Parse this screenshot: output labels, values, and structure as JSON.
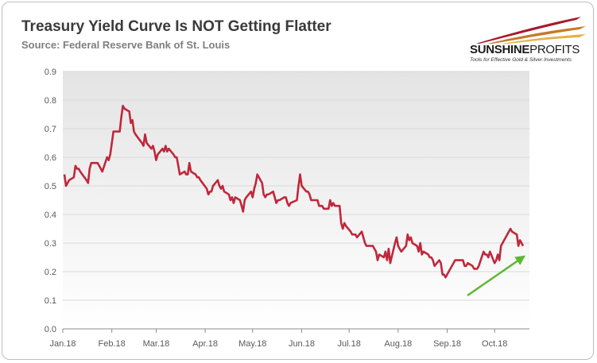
{
  "header": {
    "title": "Treasury Yield Curve Is NOT Getting Flatter",
    "subtitle": "Source: Federal Reserve Bank of St. Louis"
  },
  "logo": {
    "name_bold": "SUNSHINE",
    "name_light": "PROFITS",
    "tagline": "Tools for Effective Gold & Silver Investments",
    "colors": [
      "#a8192e",
      "#c47a2b",
      "#e2b24a"
    ]
  },
  "colors": {
    "line": "#c0273a",
    "arrow": "#5db833",
    "grid": "#d9d9d9",
    "plot_gradient_top": "#e4e4e4",
    "plot_gradient_bottom": "#ffffff"
  },
  "chart_data": {
    "type": "line",
    "title": "Treasury Yield Curve Is NOT Getting Flatter",
    "subtitle": "Source: Federal Reserve Bank of St. Louis",
    "xlabel": "",
    "ylabel": "",
    "ylim": [
      0,
      0.9
    ],
    "yticks": [
      0.0,
      0.1,
      0.2,
      0.3,
      0.4,
      0.5,
      0.6,
      0.7,
      0.8,
      0.9
    ],
    "ytick_labels": [
      "0.0",
      "0.1",
      "0.2",
      "0.3",
      "0.4",
      "0.5",
      "0.6",
      "0.7",
      "0.8",
      "0.9"
    ],
    "xlim": [
      "2018-01-01",
      "2018-10-23"
    ],
    "xticks": [
      "2018-01-01",
      "2018-02-01",
      "2018-03-01",
      "2018-04-01",
      "2018-05-01",
      "2018-06-01",
      "2018-07-01",
      "2018-08-01",
      "2018-09-01",
      "2018-10-01"
    ],
    "xtick_labels": [
      "Jan.18",
      "Feb.18",
      "Mar.18",
      "Apr.18",
      "May.18",
      "Jun.18",
      "Jul.18",
      "Aug.18",
      "Sep.18",
      "Oct.18"
    ],
    "grid": true,
    "legend": "none",
    "series": [
      {
        "x": [
          "2018-01-02",
          "2018-01-03",
          "2018-01-04",
          "2018-01-05",
          "2018-01-08",
          "2018-01-09",
          "2018-01-10",
          "2018-01-11",
          "2018-01-12",
          "2018-01-16",
          "2018-01-17",
          "2018-01-18",
          "2018-01-19",
          "2018-01-22",
          "2018-01-23",
          "2018-01-24",
          "2018-01-25",
          "2018-01-26",
          "2018-01-29",
          "2018-01-30",
          "2018-01-31",
          "2018-02-01",
          "2018-02-02",
          "2018-02-05",
          "2018-02-06",
          "2018-02-07",
          "2018-02-08",
          "2018-02-09",
          "2018-02-12",
          "2018-02-13",
          "2018-02-14",
          "2018-02-15",
          "2018-02-16",
          "2018-02-20",
          "2018-02-21",
          "2018-02-22",
          "2018-02-23",
          "2018-02-26",
          "2018-02-27",
          "2018-02-28",
          "2018-03-01",
          "2018-03-02",
          "2018-03-05",
          "2018-03-06",
          "2018-03-07",
          "2018-03-08",
          "2018-03-09",
          "2018-03-12",
          "2018-03-13",
          "2018-03-14",
          "2018-03-15",
          "2018-03-16",
          "2018-03-19",
          "2018-03-20",
          "2018-03-21",
          "2018-03-22",
          "2018-03-23",
          "2018-03-26",
          "2018-03-27",
          "2018-03-28",
          "2018-03-29",
          "2018-04-02",
          "2018-04-03",
          "2018-04-04",
          "2018-04-05",
          "2018-04-06",
          "2018-04-09",
          "2018-04-10",
          "2018-04-11",
          "2018-04-12",
          "2018-04-13",
          "2018-04-16",
          "2018-04-17",
          "2018-04-18",
          "2018-04-19",
          "2018-04-20",
          "2018-04-23",
          "2018-04-24",
          "2018-04-25",
          "2018-04-26",
          "2018-04-27",
          "2018-04-30",
          "2018-05-01",
          "2018-05-02",
          "2018-05-03",
          "2018-05-04",
          "2018-05-07",
          "2018-05-08",
          "2018-05-09",
          "2018-05-10",
          "2018-05-11",
          "2018-05-14",
          "2018-05-15",
          "2018-05-16",
          "2018-05-17",
          "2018-05-18",
          "2018-05-21",
          "2018-05-22",
          "2018-05-23",
          "2018-05-24",
          "2018-05-25",
          "2018-05-29",
          "2018-05-30",
          "2018-05-31",
          "2018-06-01",
          "2018-06-04",
          "2018-06-05",
          "2018-06-06",
          "2018-06-07",
          "2018-06-08",
          "2018-06-11",
          "2018-06-12",
          "2018-06-13",
          "2018-06-14",
          "2018-06-15",
          "2018-06-18",
          "2018-06-19",
          "2018-06-20",
          "2018-06-21",
          "2018-06-22",
          "2018-06-25",
          "2018-06-26",
          "2018-06-27",
          "2018-06-28",
          "2018-06-29",
          "2018-07-02",
          "2018-07-03",
          "2018-07-05",
          "2018-07-06",
          "2018-07-09",
          "2018-07-10",
          "2018-07-11",
          "2018-07-12",
          "2018-07-13",
          "2018-07-16",
          "2018-07-17",
          "2018-07-18",
          "2018-07-19",
          "2018-07-20",
          "2018-07-23",
          "2018-07-24",
          "2018-07-25",
          "2018-07-26",
          "2018-07-27",
          "2018-07-30",
          "2018-07-31",
          "2018-08-01",
          "2018-08-02",
          "2018-08-03",
          "2018-08-06",
          "2018-08-07",
          "2018-08-08",
          "2018-08-09",
          "2018-08-10",
          "2018-08-13",
          "2018-08-14",
          "2018-08-15",
          "2018-08-16",
          "2018-08-17",
          "2018-08-20",
          "2018-08-21",
          "2018-08-22",
          "2018-08-23",
          "2018-08-24",
          "2018-08-27",
          "2018-08-28",
          "2018-08-29",
          "2018-08-30",
          "2018-08-31",
          "2018-09-04",
          "2018-09-05",
          "2018-09-06",
          "2018-09-07",
          "2018-09-10",
          "2018-09-11",
          "2018-09-12",
          "2018-09-13",
          "2018-09-14",
          "2018-09-17",
          "2018-09-18",
          "2018-09-19",
          "2018-09-20",
          "2018-09-21",
          "2018-09-24",
          "2018-09-25",
          "2018-09-26",
          "2018-09-27",
          "2018-09-28",
          "2018-10-01",
          "2018-10-02",
          "2018-10-03",
          "2018-10-04",
          "2018-10-05",
          "2018-10-09",
          "2018-10-10",
          "2018-10-11",
          "2018-10-12",
          "2018-10-15",
          "2018-10-16",
          "2018-10-17",
          "2018-10-18",
          "2018-10-19"
        ],
        "y": [
          0.54,
          0.5,
          0.51,
          0.52,
          0.53,
          0.57,
          0.56,
          0.56,
          0.55,
          0.52,
          0.51,
          0.56,
          0.58,
          0.58,
          0.58,
          0.57,
          0.56,
          0.55,
          0.6,
          0.59,
          0.61,
          0.65,
          0.69,
          0.69,
          0.69,
          0.74,
          0.78,
          0.77,
          0.76,
          0.72,
          0.73,
          0.69,
          0.68,
          0.65,
          0.64,
          0.68,
          0.65,
          0.63,
          0.64,
          0.62,
          0.59,
          0.61,
          0.63,
          0.62,
          0.64,
          0.62,
          0.63,
          0.61,
          0.6,
          0.6,
          0.57,
          0.54,
          0.55,
          0.54,
          0.54,
          0.58,
          0.55,
          0.54,
          0.53,
          0.53,
          0.52,
          0.49,
          0.47,
          0.48,
          0.48,
          0.5,
          0.52,
          0.5,
          0.49,
          0.5,
          0.48,
          0.47,
          0.45,
          0.46,
          0.44,
          0.46,
          0.45,
          0.43,
          0.41,
          0.45,
          0.46,
          0.48,
          0.46,
          0.49,
          0.51,
          0.54,
          0.51,
          0.47,
          0.46,
          0.47,
          0.47,
          0.48,
          0.46,
          0.44,
          0.45,
          0.45,
          0.46,
          0.46,
          0.44,
          0.43,
          0.44,
          0.45,
          0.5,
          0.54,
          0.5,
          0.48,
          0.48,
          0.47,
          0.45,
          0.45,
          0.45,
          0.43,
          0.43,
          0.43,
          0.42,
          0.42,
          0.45,
          0.43,
          0.44,
          0.43,
          0.43,
          0.37,
          0.35,
          0.37,
          0.36,
          0.34,
          0.33,
          0.33,
          0.32,
          0.34,
          0.32,
          0.3,
          0.29,
          0.29,
          0.29,
          0.28,
          0.27,
          0.24,
          0.26,
          0.25,
          0.27,
          0.24,
          0.28,
          0.23,
          0.3,
          0.32,
          0.29,
          0.28,
          0.27,
          0.29,
          0.33,
          0.31,
          0.32,
          0.3,
          0.29,
          0.27,
          0.3,
          0.26,
          0.27,
          0.26,
          0.25,
          0.25,
          0.24,
          0.22,
          0.24,
          0.23,
          0.19,
          0.19,
          0.18,
          0.22,
          0.23,
          0.24,
          0.24,
          0.24,
          0.24,
          0.22,
          0.22,
          0.23,
          0.22,
          0.21,
          0.21,
          0.21,
          0.22,
          0.27,
          0.26,
          0.26,
          0.25,
          0.27,
          0.23,
          0.24,
          0.26,
          0.24,
          0.29,
          0.33,
          0.34,
          0.35,
          0.34,
          0.33,
          0.29,
          0.31,
          0.3,
          0.29
        ]
      }
    ]
  }
}
